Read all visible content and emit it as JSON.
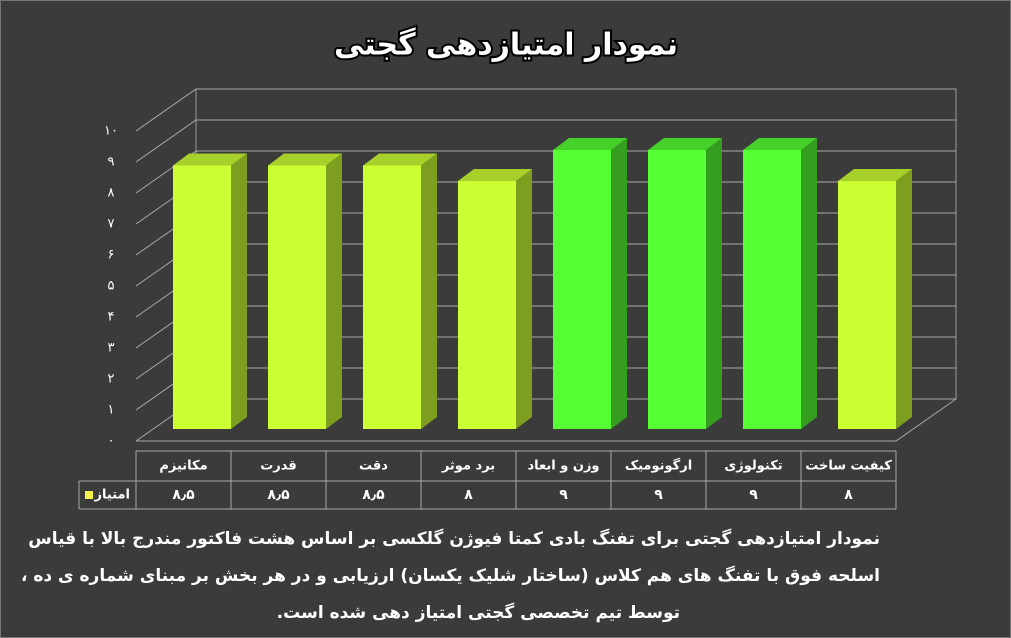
{
  "chart_data": {
    "type": "bar3d",
    "title": "نمودار امتیازدهی گجتی",
    "categories": [
      "مکانیزم",
      "قدرت",
      "دقت",
      "برد موثر",
      "وزن و ابعاد",
      "ارگونومیک",
      "تکنولوژی",
      "کیفیت ساخت"
    ],
    "series": [
      {
        "name": "امتیاز",
        "color": "#f2f24a",
        "bar_colors": [
          "#ccff33",
          "#ccff33",
          "#ccff33",
          "#ccff33",
          "#55ff33",
          "#55ff33",
          "#55ff33",
          "#ccff33"
        ],
        "values": [
          8.5,
          8.5,
          8.5,
          8,
          9,
          9,
          9,
          8
        ],
        "value_labels": [
          "۸٫۵",
          "۸٫۵",
          "۸٫۵",
          "۸",
          "۹",
          "۹",
          "۹",
          "۸"
        ]
      }
    ],
    "ylim": [
      0,
      10
    ],
    "yticks": [
      {
        "value": 0,
        "label": "۰"
      },
      {
        "value": 1,
        "label": "۱"
      },
      {
        "value": 2,
        "label": "۲"
      },
      {
        "value": 3,
        "label": "۳"
      },
      {
        "value": 4,
        "label": "۴"
      },
      {
        "value": 5,
        "label": "۵"
      },
      {
        "value": 6,
        "label": "۶"
      },
      {
        "value": 7,
        "label": "۷"
      },
      {
        "value": 8,
        "label": "۸"
      },
      {
        "value": 9,
        "label": "۹"
      },
      {
        "value": 10,
        "label": "۱۰"
      }
    ],
    "grid": true,
    "note_lines": [
      "نمودار امتیازدهی گجتی برای تفنگ بادی کمتا فیوژن گلکسی بر اساس هشت فاکتور مندرج بالا با قیاس",
      "اسلحه فوق با تفنگ های هم کلاس (ساختار شلیک یکسان) ارزیابی و در هر بخش بر مبنای شماره ی ده ،",
      "توسط تیم تخصصی گجتی امتیاز دهی شده است."
    ]
  }
}
